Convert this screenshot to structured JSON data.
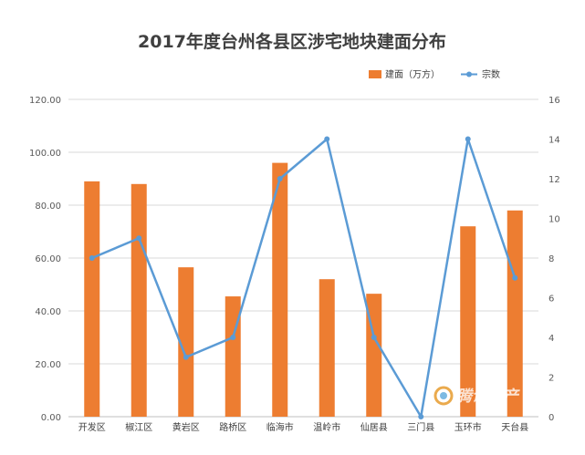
{
  "chart_data": {
    "type": "bar",
    "title": "2017年度台州各县区涉宅地块建面分布",
    "categories": [
      "开发区",
      "椒江区",
      "黄岩区",
      "路桥区",
      "临海市",
      "温岭市",
      "仙居县",
      "三门县",
      "玉环市",
      "天台县"
    ],
    "series": [
      {
        "name": "建面（万方）",
        "type": "bar",
        "axis": "left",
        "color": "#ED7D31",
        "values": [
          89,
          88,
          56.5,
          45.5,
          96,
          52,
          46.5,
          0,
          72,
          78
        ]
      },
      {
        "name": "宗数",
        "type": "line",
        "axis": "right",
        "color": "#5B9BD5",
        "values": [
          8,
          9,
          3,
          4,
          12,
          14,
          4,
          0,
          14,
          7
        ]
      }
    ],
    "y_left": {
      "min": 0,
      "max": 120,
      "step": 20,
      "ticks": [
        "0.00",
        "20.00",
        "40.00",
        "60.00",
        "80.00",
        "100.00",
        "120.00"
      ]
    },
    "y_right": {
      "min": 0,
      "max": 16,
      "step": 2,
      "ticks": [
        "0",
        "2",
        "4",
        "6",
        "8",
        "10",
        "12",
        "14",
        "16"
      ]
    },
    "grid": true,
    "legend": "top-right"
  },
  "watermark": "腾讯房产"
}
